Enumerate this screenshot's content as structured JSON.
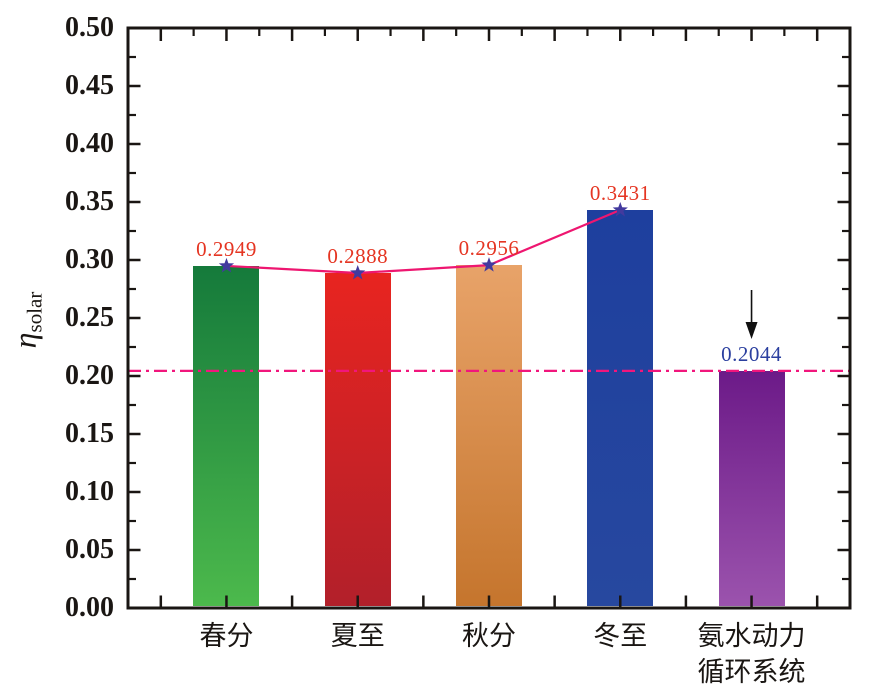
{
  "chart_data": {
    "type": "bar",
    "title": "",
    "categories": [
      "春分",
      "夏至",
      "秋分",
      "冬至",
      "氨水动力\n循环系统"
    ],
    "values": [
      0.2949,
      0.2888,
      0.2956,
      0.3431,
      0.2044
    ],
    "bar_value_labels": [
      "0.2949",
      "0.2888",
      "0.2956",
      "0.3431",
      "0.2044"
    ],
    "bar_value_label_colors": [
      "#e53522",
      "#e53522",
      "#e53522",
      "#e53522",
      "#2b3f9f"
    ],
    "bar_gradients": [
      [
        "#157a3b",
        "#4cb94c"
      ],
      [
        "#e82420",
        "#b2202a"
      ],
      [
        "#e8a369",
        "#c5752d"
      ],
      [
        "#1e3f9e",
        "#27489f"
      ],
      [
        "#6c1a88",
        "#9b53ad"
      ]
    ],
    "ylabel_main": "η",
    "ylabel_sub": "solar",
    "xlabel": "",
    "ylim": [
      0.0,
      0.5
    ],
    "ytick_major_step": 0.05,
    "ytick_minor_step": 0.025,
    "ytick_labels": [
      "0.00",
      "0.05",
      "0.10",
      "0.15",
      "0.20",
      "0.25",
      "0.30",
      "0.35",
      "0.40",
      "0.45",
      "0.50"
    ],
    "grid": "off",
    "legend": "none",
    "trend_line": {
      "marker": "star",
      "marker_color": "#433a9e",
      "line_color": "#ee1670",
      "points": [
        0.2949,
        0.2888,
        0.2956,
        0.3431
      ]
    },
    "reference_line": {
      "value": 0.2044,
      "style": "dash-dot",
      "color": "#f1167c"
    },
    "annotation_arrow": {
      "category_index": 4,
      "direction": "down",
      "color": "#111111"
    },
    "axis_color": "#1a1613",
    "background": "#ffffff"
  }
}
